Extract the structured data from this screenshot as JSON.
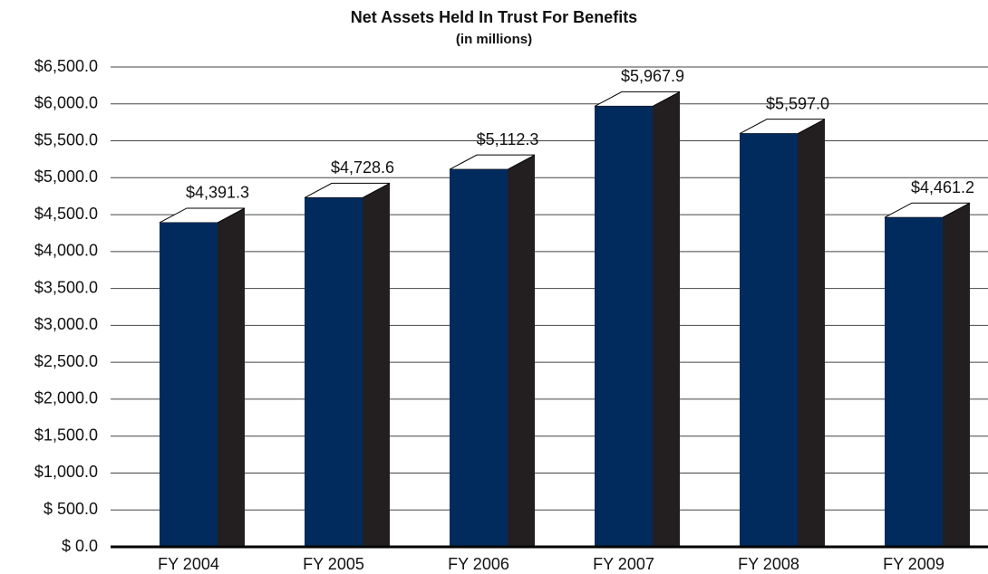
{
  "chart_data": {
    "type": "bar3d",
    "title": "Net Assets Held In Trust For Benefits",
    "subtitle": "(in millions)",
    "categories": [
      "FY 2004",
      "FY 2005",
      "FY 2006",
      "FY 2007",
      "FY 2008",
      "FY 2009"
    ],
    "values": [
      4391.3,
      4728.6,
      5112.3,
      5967.9,
      5597.0,
      4461.2
    ],
    "value_labels": [
      "$4,391.3",
      "$4,728.6",
      "$5,112.3",
      "$5,967.9",
      "$5,597.0",
      "$4,461.2"
    ],
    "color": "#002b5c",
    "side_color": "#231f20",
    "ylim": [
      0,
      6500
    ],
    "yticks": [
      {
        "value": 0,
        "label": "$ 0.0"
      },
      {
        "value": 500,
        "label": "$ 500.0"
      },
      {
        "value": 1000,
        "label": "$1,000.0"
      },
      {
        "value": 1500,
        "label": "$1,500.0"
      },
      {
        "value": 2000,
        "label": "$2,000.0"
      },
      {
        "value": 2500,
        "label": "$2,500.0"
      },
      {
        "value": 3000,
        "label": "$3,000.0"
      },
      {
        "value": 3500,
        "label": "$3,500.0"
      },
      {
        "value": 4000,
        "label": "$4,000.0"
      },
      {
        "value": 4500,
        "label": "$4,500.0"
      },
      {
        "value": 5000,
        "label": "$5,000.0"
      },
      {
        "value": 5500,
        "label": "$5,500.0"
      },
      {
        "value": 6000,
        "label": "$6,000.0"
      },
      {
        "value": 6500,
        "label": "$6,500.0"
      }
    ],
    "grid": true
  }
}
